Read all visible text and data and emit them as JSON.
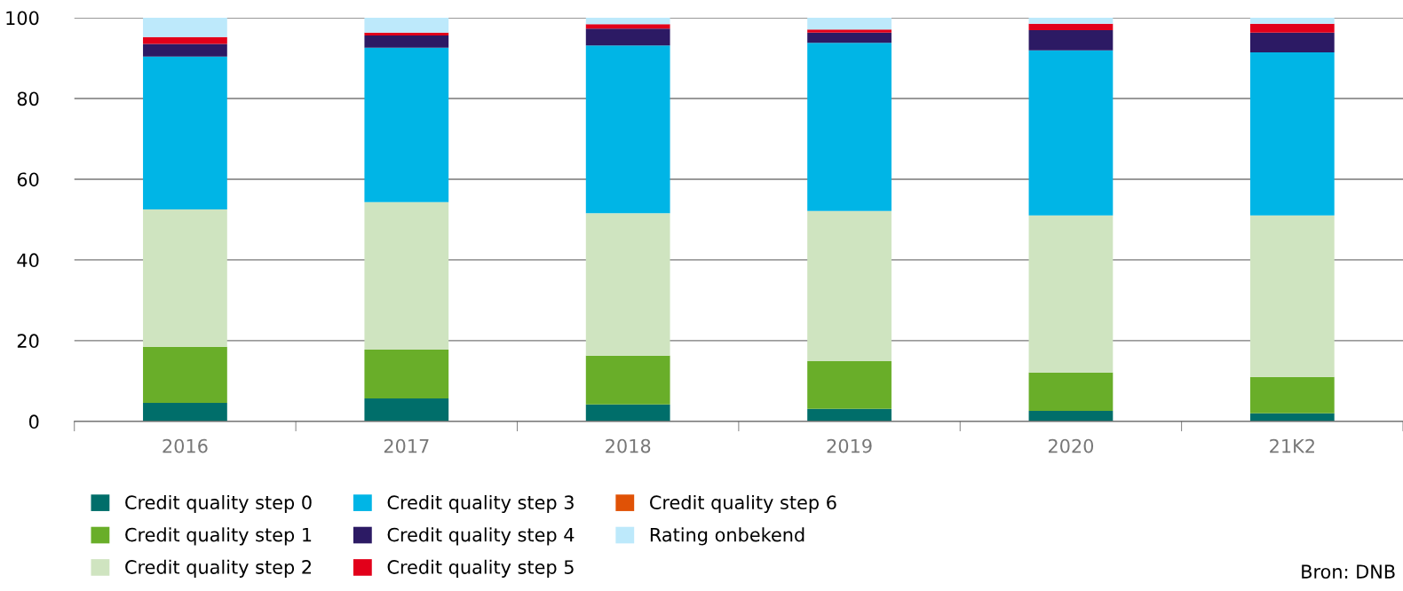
{
  "chart_data": {
    "type": "bar",
    "stacked": true,
    "categories": [
      "2016",
      "2017",
      "2018",
      "2019",
      "2020",
      "21K2"
    ],
    "series": [
      {
        "name": "Credit quality step 0",
        "color": "#006e6a",
        "values": [
          4.6,
          5.7,
          4.2,
          3.1,
          2.6,
          2.0
        ]
      },
      {
        "name": "Credit quality step 1",
        "color": "#69ae29",
        "values": [
          13.9,
          12.1,
          12.1,
          11.8,
          9.5,
          9.0
        ]
      },
      {
        "name": "Credit quality step 2",
        "color": "#cfe4c0",
        "values": [
          34.0,
          36.5,
          35.3,
          37.2,
          38.9,
          40.0
        ]
      },
      {
        "name": "Credit quality step 3",
        "color": "#00b5e6",
        "values": [
          37.9,
          38.3,
          41.5,
          41.7,
          40.9,
          40.4
        ]
      },
      {
        "name": "Credit quality step 4",
        "color": "#2c1a64",
        "values": [
          3.1,
          3.0,
          4.2,
          2.5,
          5.0,
          4.9
        ]
      },
      {
        "name": "Credit quality step 5",
        "color": "#e2001a",
        "values": [
          1.7,
          0.7,
          1.1,
          0.8,
          1.6,
          2.2
        ]
      },
      {
        "name": "Credit quality step 6",
        "color": "#e05206",
        "values": [
          0,
          0,
          0,
          0,
          0,
          0
        ]
      },
      {
        "name": "Rating onbekend",
        "color": "#bde9fb",
        "values": [
          4.8,
          3.7,
          1.6,
          2.9,
          1.5,
          1.5
        ]
      }
    ],
    "ylim": [
      0,
      100
    ],
    "yticks": [
      0,
      20,
      40,
      60,
      80,
      100
    ],
    "grid": "y",
    "legend": "bottom",
    "annotations": [
      "Bron: DNB"
    ]
  }
}
